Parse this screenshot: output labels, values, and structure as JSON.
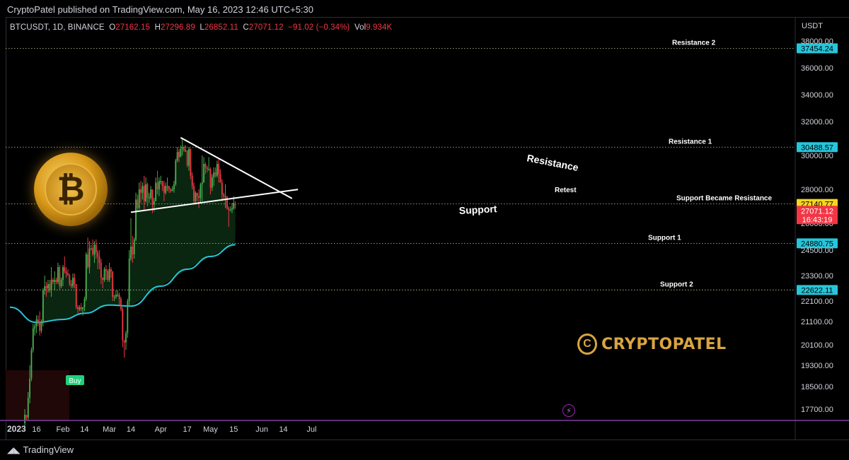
{
  "header": {
    "published": "CryptoPatel published on TradingView.com, May 16, 2023 12:46 UTC+5:30"
  },
  "ohlc": {
    "symbol": "BTCUSDT, 1D, BINANCE",
    "o_label": "O",
    "o": "27162.15",
    "h_label": "H",
    "h": "27296.89",
    "l_label": "L",
    "l": "26852.11",
    "c_label": "C",
    "c": "27071.12",
    "change": "−91.02 (−0.34%)",
    "vol_label": "Vol",
    "vol": "9.934K"
  },
  "currency": "USDT",
  "footer": {
    "brand": "TradingView"
  },
  "brand_logo": {
    "name": "CRYPTOPATEL",
    "mark": "C"
  },
  "buy_label": "Buy",
  "colors": {
    "up": "#26a69a",
    "up_bright": "#4caf50",
    "down": "#f23645",
    "ma": "#26c6da",
    "level_badge": "#26c6da",
    "price_badge": "#f23645",
    "yellow_badge": "#f7d51d",
    "cloud": "#0b2a12"
  },
  "chart_data": {
    "type": "candlestick",
    "title": "",
    "x_ticks": [
      "2023",
      "16",
      "Feb",
      "14",
      "Mar",
      "14",
      "Apr",
      "17",
      "May",
      "15",
      "Jun",
      "14",
      "Jul"
    ],
    "y_ticks": [
      "38000.00",
      "36000.00",
      "34000.00",
      "32000.00",
      "30000.00",
      "28000.00",
      "26000.00",
      "24500.00",
      "23300.00",
      "22100.00",
      "21100.00",
      "20100.00",
      "19300.00",
      "18500.00",
      "17700.00"
    ],
    "levels": [
      {
        "name": "Resistance 2",
        "value": 37454.24,
        "badge": "37454.24"
      },
      {
        "name": "Resistance 1",
        "value": 30488.57,
        "badge": "30488.57"
      },
      {
        "name": "Support Became Resistance",
        "value": 27140.77,
        "badge": "27140.77"
      },
      {
        "name": "Support 1",
        "value": 24880.75,
        "badge": "24880.75"
      },
      {
        "name": "Support 2",
        "value": 22622.11,
        "badge": "22622.11"
      }
    ],
    "last_price": {
      "value": 27071.12,
      "badge": "27071.12",
      "countdown": "16:43:19"
    },
    "annotations": [
      "Resistance",
      "Support",
      "Retest"
    ],
    "trendlines": [
      {
        "name": "Resistance",
        "from": {
          "date": "2023-04-13",
          "price": 31050
        },
        "to": {
          "date": "2023-06-12",
          "price": 27850
        }
      },
      {
        "name": "Support",
        "from": {
          "date": "2023-03-14",
          "price": 26650
        },
        "to": {
          "date": "2023-06-12",
          "price": 27850
        }
      }
    ],
    "moving_average": [
      {
        "date": "2022-12-31",
        "price": 21800
      },
      {
        "date": "2023-01-16",
        "price": 21060
      },
      {
        "date": "2023-02-01",
        "price": 21200
      },
      {
        "date": "2023-02-14",
        "price": 21500
      },
      {
        "date": "2023-03-01",
        "price": 21900
      },
      {
        "date": "2023-03-14",
        "price": 21850
      },
      {
        "date": "2023-04-01",
        "price": 22800
      },
      {
        "date": "2023-04-17",
        "price": 23600
      },
      {
        "date": "2023-05-01",
        "price": 24200
      },
      {
        "date": "2023-05-16",
        "price": 24800
      }
    ],
    "candles": [
      [
        "2023-01-09",
        17200,
        17700,
        17000,
        17500
      ],
      [
        "2023-01-10",
        17500,
        17500,
        17300,
        17400
      ],
      [
        "2023-01-11",
        17400,
        18300,
        17300,
        18100
      ],
      [
        "2023-01-12",
        18100,
        19300,
        17900,
        18800
      ],
      [
        "2023-01-13",
        18800,
        20000,
        18700,
        19900
      ],
      [
        "2023-01-14",
        19900,
        21000,
        19800,
        20800
      ],
      [
        "2023-01-15",
        20800,
        21000,
        20500,
        20900
      ],
      [
        "2023-01-16",
        20900,
        21400,
        20600,
        21200
      ],
      [
        "2023-01-17",
        21200,
        21400,
        20900,
        21100
      ],
      [
        "2023-01-18",
        21100,
        21600,
        20500,
        20700
      ],
      [
        "2023-01-19",
        20700,
        21200,
        20600,
        21100
      ],
      [
        "2023-01-20",
        21100,
        22700,
        20900,
        22600
      ],
      [
        "2023-01-21",
        22600,
        23300,
        22400,
        22800
      ],
      [
        "2023-01-22",
        22800,
        23000,
        22300,
        22700
      ],
      [
        "2023-01-23",
        22700,
        23100,
        22500,
        22900
      ],
      [
        "2023-01-24",
        22900,
        23100,
        22500,
        22600
      ],
      [
        "2023-01-25",
        22600,
        23700,
        22300,
        23100
      ],
      [
        "2023-01-26",
        23100,
        23200,
        22900,
        23000
      ],
      [
        "2023-01-27",
        23000,
        23500,
        22600,
        23100
      ],
      [
        "2023-01-28",
        23100,
        23200,
        22900,
        23000
      ],
      [
        "2023-01-29",
        23000,
        23900,
        22900,
        23700
      ],
      [
        "2023-01-30",
        23700,
        23800,
        22600,
        22800
      ],
      [
        "2023-01-31",
        22800,
        23200,
        22700,
        23100
      ],
      [
        "2023-02-01",
        23100,
        23800,
        22800,
        23700
      ],
      [
        "2023-02-02",
        23700,
        24200,
        23400,
        23500
      ],
      [
        "2023-02-03",
        23500,
        23700,
        23200,
        23400
      ],
      [
        "2023-02-04",
        23400,
        23600,
        23300,
        23300
      ],
      [
        "2023-02-05",
        23300,
        23400,
        22800,
        22900
      ],
      [
        "2023-02-06",
        22900,
        23100,
        22700,
        22800
      ],
      [
        "2023-02-07",
        22800,
        23400,
        22700,
        23200
      ],
      [
        "2023-02-08",
        23200,
        23400,
        22700,
        22900
      ],
      [
        "2023-02-09",
        22900,
        22900,
        21700,
        21800
      ],
      [
        "2023-02-10",
        21800,
        21900,
        21500,
        21700
      ],
      [
        "2023-02-11",
        21700,
        21900,
        21600,
        21800
      ],
      [
        "2023-02-12",
        21800,
        22000,
        21600,
        21700
      ],
      [
        "2023-02-13",
        21700,
        21800,
        21400,
        21800
      ],
      [
        "2023-02-14",
        21800,
        22300,
        21600,
        22200
      ],
      [
        "2023-02-15",
        22200,
        24400,
        22100,
        24300
      ],
      [
        "2023-02-16",
        24300,
        25200,
        23600,
        23700
      ],
      [
        "2023-02-17",
        23700,
        25000,
        23400,
        24600
      ],
      [
        "2023-02-18",
        24600,
        24800,
        24500,
        24600
      ],
      [
        "2023-02-19",
        24600,
        25100,
        24200,
        24300
      ],
      [
        "2023-02-20",
        24300,
        25000,
        23900,
        24800
      ],
      [
        "2023-02-21",
        24800,
        25100,
        24100,
        24400
      ],
      [
        "2023-02-22",
        24400,
        24500,
        23600,
        24200
      ],
      [
        "2023-02-23",
        24200,
        24500,
        23600,
        23900
      ],
      [
        "2023-02-24",
        23900,
        24100,
        22900,
        23200
      ],
      [
        "2023-02-25",
        23200,
        23200,
        22700,
        23100
      ],
      [
        "2023-02-26",
        23100,
        23700,
        23000,
        23600
      ],
      [
        "2023-02-27",
        23600,
        23800,
        23100,
        23500
      ],
      [
        "2023-02-28",
        23500,
        23600,
        23000,
        23100
      ],
      [
        "2023-03-01",
        23100,
        23900,
        23000,
        23600
      ],
      [
        "2023-03-02",
        23600,
        23700,
        23200,
        23500
      ],
      [
        "2023-03-03",
        23500,
        23500,
        22100,
        22300
      ],
      [
        "2023-03-04",
        22300,
        22400,
        22100,
        22300
      ],
      [
        "2023-03-05",
        22300,
        22600,
        22200,
        22400
      ],
      [
        "2023-03-06",
        22400,
        22600,
        22300,
        22400
      ],
      [
        "2023-03-07",
        22400,
        22500,
        21900,
        22200
      ],
      [
        "2023-03-08",
        22200,
        22300,
        21600,
        21700
      ],
      [
        "2023-03-09",
        21700,
        21800,
        20000,
        20300
      ],
      [
        "2023-03-10",
        20300,
        20300,
        19600,
        20200
      ],
      [
        "2023-03-11",
        20200,
        20700,
        19900,
        20600
      ],
      [
        "2023-03-12",
        20600,
        22200,
        20400,
        22100
      ],
      [
        "2023-03-13",
        22100,
        24500,
        21900,
        24100
      ],
      [
        "2023-03-14",
        24100,
        26300,
        24000,
        24700
      ],
      [
        "2023-03-15",
        24700,
        25300,
        23900,
        24300
      ],
      [
        "2023-03-16",
        24300,
        25200,
        24100,
        25100
      ],
      [
        "2023-03-17",
        25100,
        27800,
        25000,
        27400
      ],
      [
        "2023-03-18",
        27400,
        27700,
        26700,
        26900
      ],
      [
        "2023-03-19",
        26900,
        28400,
        26800,
        28000
      ],
      [
        "2023-03-20",
        28000,
        28500,
        27200,
        27800
      ],
      [
        "2023-03-21",
        27800,
        28400,
        27400,
        28200
      ],
      [
        "2023-03-22",
        28200,
        28800,
        26800,
        27300
      ],
      [
        "2023-03-23",
        27300,
        28700,
        27200,
        28300
      ],
      [
        "2023-03-24",
        28300,
        28400,
        27000,
        27500
      ],
      [
        "2023-03-25",
        27500,
        27800,
        27200,
        27500
      ],
      [
        "2023-03-26",
        27500,
        28200,
        27400,
        28000
      ],
      [
        "2023-03-27",
        28000,
        28000,
        26600,
        27100
      ],
      [
        "2023-03-28",
        27100,
        27500,
        26700,
        27300
      ],
      [
        "2023-03-29",
        27300,
        28700,
        27300,
        28400
      ],
      [
        "2023-03-30",
        28400,
        29100,
        27700,
        28000
      ],
      [
        "2023-03-31",
        28000,
        28700,
        27600,
        28500
      ],
      [
        "2023-04-01",
        28500,
        28800,
        28300,
        28500
      ],
      [
        "2023-04-02",
        28500,
        28500,
        27900,
        28200
      ],
      [
        "2023-04-03",
        28200,
        28500,
        27300,
        27800
      ],
      [
        "2023-04-04",
        27800,
        28400,
        27700,
        28200
      ],
      [
        "2023-04-05",
        28200,
        28700,
        27900,
        28200
      ],
      [
        "2023-04-06",
        28200,
        28200,
        27800,
        28000
      ],
      [
        "2023-04-07",
        28000,
        28100,
        27800,
        27900
      ],
      [
        "2023-04-08",
        27900,
        28200,
        27900,
        28000
      ],
      [
        "2023-04-09",
        28000,
        28500,
        27800,
        28300
      ],
      [
        "2023-04-10",
        28300,
        29800,
        28200,
        29700
      ],
      [
        "2023-04-11",
        29700,
        30500,
        29600,
        30200
      ],
      [
        "2023-04-12",
        30200,
        30400,
        29600,
        29900
      ],
      [
        "2023-04-13",
        29900,
        30600,
        29900,
        30400
      ],
      [
        "2023-04-14",
        30400,
        31000,
        30000,
        30500
      ],
      [
        "2023-04-15",
        30500,
        30600,
        30200,
        30300
      ],
      [
        "2023-04-16",
        30300,
        30600,
        30200,
        30300
      ],
      [
        "2023-04-17",
        30300,
        30300,
        29300,
        29400
      ],
      [
        "2023-04-18",
        29400,
        30500,
        29100,
        30400
      ],
      [
        "2023-04-19",
        30400,
        30400,
        28600,
        28800
      ],
      [
        "2023-04-20",
        28800,
        29000,
        28000,
        28200
      ],
      [
        "2023-04-21",
        28200,
        28400,
        27100,
        27300
      ],
      [
        "2023-04-22",
        27300,
        27900,
        27100,
        27800
      ],
      [
        "2023-04-23",
        27800,
        27800,
        27300,
        27600
      ],
      [
        "2023-04-24",
        27600,
        28000,
        26900,
        27500
      ],
      [
        "2023-04-25",
        27500,
        28400,
        27200,
        28300
      ],
      [
        "2023-04-26",
        28300,
        30000,
        27300,
        28400
      ],
      [
        "2023-04-27",
        28400,
        29900,
        28400,
        29500
      ],
      [
        "2023-04-28",
        29500,
        29600,
        28900,
        29300
      ],
      [
        "2023-04-29",
        29300,
        29400,
        29000,
        29200
      ],
      [
        "2023-04-30",
        29200,
        29900,
        29100,
        29200
      ],
      [
        "2023-05-01",
        29200,
        29300,
        27700,
        28100
      ],
      [
        "2023-05-02",
        28100,
        28900,
        27900,
        28700
      ],
      [
        "2023-05-03",
        28700,
        29300,
        28200,
        29000
      ],
      [
        "2023-05-04",
        29000,
        29300,
        28700,
        28800
      ],
      [
        "2023-05-05",
        28800,
        29700,
        28700,
        29500
      ],
      [
        "2023-05-06",
        29500,
        29800,
        28400,
        28900
      ],
      [
        "2023-05-07",
        28900,
        29200,
        28500,
        28400
      ],
      [
        "2023-05-08",
        28400,
        28600,
        27300,
        27700
      ],
      [
        "2023-05-09",
        27700,
        27800,
        27400,
        27600
      ],
      [
        "2023-05-10",
        27600,
        28300,
        26900,
        27600
      ],
      [
        "2023-05-11",
        27600,
        27600,
        26800,
        26900
      ],
      [
        "2023-05-12",
        26900,
        27000,
        25800,
        26800
      ],
      [
        "2023-05-13",
        26800,
        27000,
        26700,
        26800
      ],
      [
        "2023-05-14",
        26800,
        27200,
        26600,
        26900
      ],
      [
        "2023-05-15",
        26900,
        27600,
        26800,
        27200
      ],
      [
        "2023-05-16",
        27162.15,
        27296.89,
        26852.11,
        27071.12
      ]
    ]
  }
}
